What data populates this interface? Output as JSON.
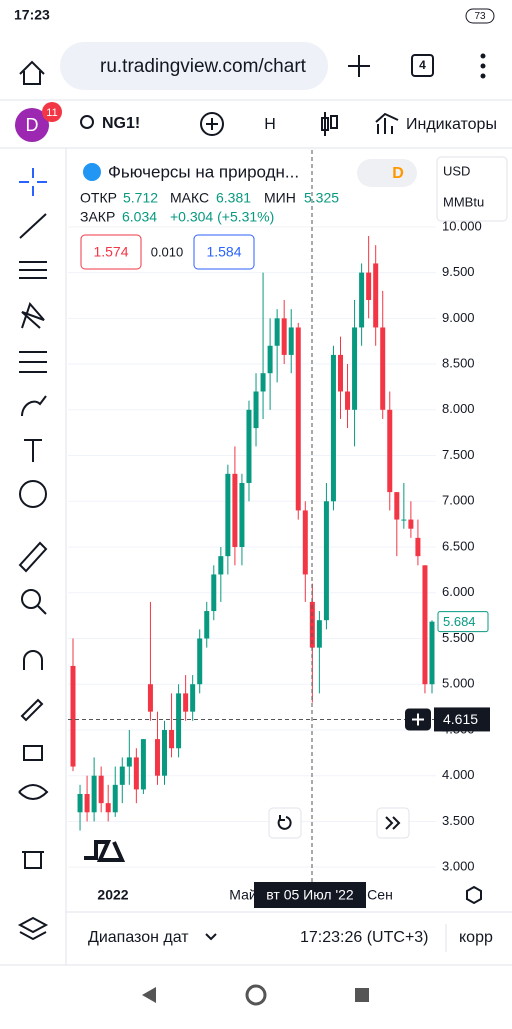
{
  "status_bar": {
    "time": "17:23",
    "battery": "73"
  },
  "browser": {
    "url": "ru.tradingview.com/chart",
    "tabs": "4"
  },
  "toolbar": {
    "avatar": "D",
    "badge": "11",
    "symbol": "NG1!",
    "interval": "H",
    "indicators": "Индикаторы"
  },
  "legend": {
    "title": "Фьючерсы на природн...",
    "interval": "D",
    "currency": "USD",
    "unit": "MMBtu",
    "open_label": "ОТКР",
    "open": "5.712",
    "high_label": "МАКС",
    "high": "6.381",
    "low_label": "МИН",
    "low": "5.325",
    "close_label": "ЗАКР",
    "close": "6.034",
    "change": "+0.304 (+5.31%)",
    "bid": "1.574",
    "spread": "0.010",
    "ask": "1.584"
  },
  "chart_data": {
    "type": "candlestick",
    "up_color": "#089981",
    "down_color": "#f23645",
    "grid": true,
    "ylim": [
      2.51,
      10.84
    ],
    "yticks": [
      {
        "value": 3,
        "label": "3.000"
      },
      {
        "value": 3.5,
        "label": "3.500"
      },
      {
        "value": 4,
        "label": "4.000"
      },
      {
        "value": 4.5,
        "label": "4.500"
      },
      {
        "value": 5,
        "label": "5.000"
      },
      {
        "value": 5.5,
        "label": "5.500"
      },
      {
        "value": 6,
        "label": "6.000"
      },
      {
        "value": 6.5,
        "label": "6.500"
      },
      {
        "value": 7,
        "label": "7.000"
      },
      {
        "value": 7.5,
        "label": "7.500"
      },
      {
        "value": 8,
        "label": "8.000"
      },
      {
        "value": 8.5,
        "label": "8.500"
      },
      {
        "value": 9,
        "label": "9.000"
      },
      {
        "value": 9.5,
        "label": "9.500"
      },
      {
        "value": 10,
        "label": "10.000"
      }
    ],
    "x_labels": [
      "2022",
      "Май",
      "Сен"
    ],
    "open": [
      5.2,
      3.6,
      3.8,
      3.6,
      4.0,
      3.7,
      3.6,
      3.9,
      4.1,
      4.2,
      3.85,
      5.0,
      4.4,
      4.0,
      4.5,
      4.3,
      4.9,
      4.7,
      5.0,
      5.5,
      5.8,
      6.2,
      6.4,
      7.3,
      6.5,
      7.2,
      7.8,
      8.2,
      8.4,
      8.7,
      9.0,
      8.6,
      8.9,
      6.9,
      5.9,
      5.4,
      5.7,
      7.0,
      8.6,
      8.2,
      8.0,
      8.9,
      9.5,
      9.6,
      8.9,
      8.0,
      7.1,
      6.8,
      6.8,
      6.6,
      6.3,
      5.0
    ],
    "high": [
      5.5,
      3.9,
      4.0,
      4.2,
      4.1,
      3.9,
      4.1,
      4.2,
      4.5,
      4.3,
      4.4,
      5.9,
      4.7,
      4.6,
      4.9,
      5.0,
      5.1,
      5.1,
      5.6,
      5.9,
      6.3,
      6.5,
      7.4,
      7.6,
      7.3,
      8.1,
      8.4,
      9.5,
      9.0,
      9.1,
      9.2,
      9.1,
      8.95,
      7.0,
      6.1,
      5.8,
      7.2,
      8.7,
      8.8,
      8.5,
      9.2,
      9.6,
      9.9,
      9.8,
      9.3,
      8.2,
      7.1,
      7.2,
      7.0,
      6.8,
      6.3,
      5.7
    ],
    "low": [
      4.05,
      3.4,
      3.5,
      3.5,
      3.6,
      3.5,
      3.55,
      3.7,
      3.9,
      3.7,
      3.8,
      4.6,
      3.9,
      3.9,
      4.2,
      4.2,
      4.6,
      4.6,
      4.9,
      5.4,
      5.7,
      5.9,
      6.2,
      6.3,
      6.3,
      7.0,
      7.6,
      7.9,
      8.0,
      8.3,
      8.5,
      8.4,
      6.8,
      5.9,
      4.8,
      4.9,
      5.6,
      6.9,
      7.9,
      7.8,
      7.6,
      8.7,
      9.0,
      8.7,
      7.9,
      6.9,
      6.4,
      6.7,
      6.6,
      6.3,
      4.9,
      4.9
    ],
    "close": [
      4.1,
      3.8,
      3.6,
      4.0,
      3.7,
      3.6,
      3.9,
      4.1,
      4.2,
      3.85,
      4.4,
      4.7,
      4.0,
      4.5,
      4.3,
      4.9,
      4.7,
      5.0,
      5.5,
      5.8,
      6.2,
      6.4,
      7.3,
      6.5,
      7.2,
      8.0,
      8.2,
      8.4,
      8.7,
      9.0,
      8.6,
      8.9,
      6.9,
      6.2,
      5.4,
      5.7,
      7.0,
      8.6,
      8.2,
      8.0,
      8.9,
      9.5,
      9.2,
      8.9,
      8.0,
      7.1,
      6.8,
      6.8,
      6.7,
      6.4,
      5.0,
      5.684
    ],
    "last_price": 5.684,
    "crosshair": {
      "price": 4.615,
      "date": "вт 05 Июл '22"
    }
  },
  "bottom": {
    "range": "Диапазон дат",
    "clock": "17:23:26 (UTC+3)",
    "adjust": "корр"
  }
}
